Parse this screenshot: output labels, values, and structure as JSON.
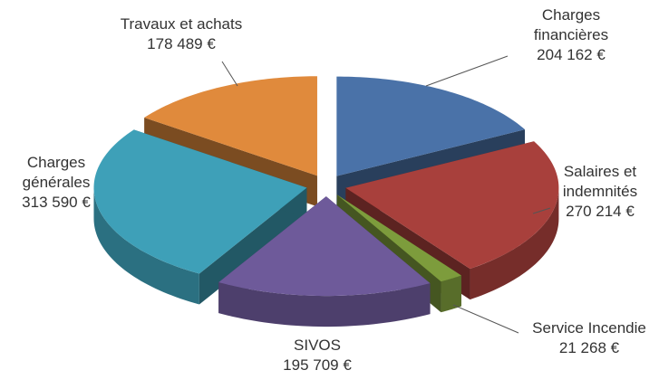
{
  "chart_data": {
    "type": "pie",
    "categories": [
      "Charges\nfinancières",
      "Salaires et\nindemnités",
      "Service Incendie",
      "SIVOS",
      "Charges\ngénérales",
      "Travaux et achats"
    ],
    "values": [
      204162,
      270214,
      21268,
      195709,
      313590,
      178489
    ],
    "value_labels": [
      "204 162 €",
      "270 214 €",
      "21 268 €",
      "195 709 €",
      "313 590 €",
      "178 489 €"
    ],
    "colors": [
      "#4a72a8",
      "#a8403c",
      "#7d9c3c",
      "#6e5a9a",
      "#3ea0b8",
      "#e08a3c"
    ]
  }
}
